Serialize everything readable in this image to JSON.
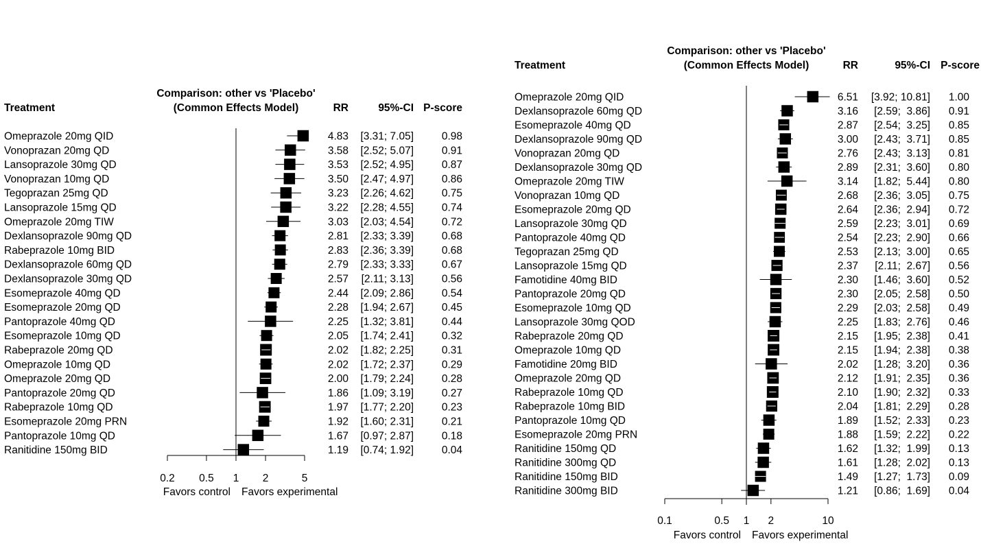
{
  "chart_data": [
    {
      "type": "forest",
      "comparison_title": [
        "Comparison: other vs 'Placebo'",
        "(Common Effects Model)"
      ],
      "headers": {
        "treatment": "Treatment",
        "rr": "RR",
        "ci": "95%-CI",
        "pscore": "P-score"
      },
      "x_scale": "log",
      "x_ticks": [
        0.2,
        0.5,
        1,
        2,
        5
      ],
      "x_tick_labels": [
        "0.2",
        "0.5",
        "1",
        "2",
        "5"
      ],
      "xlim": [
        0.2,
        5
      ],
      "favors_left": "Favors control",
      "favors_right": "Favors experimental",
      "rows": [
        {
          "treatment": "Omeprazole 20mg QID",
          "rr": 4.83,
          "lo": 3.31,
          "hi": 7.05,
          "rr_text": "4.83",
          "ci_text": "[3.31; 7.05]",
          "pscore": "0.98"
        },
        {
          "treatment": "Vonoprazan 20mg QD",
          "rr": 3.58,
          "lo": 2.52,
          "hi": 5.07,
          "rr_text": "3.58",
          "ci_text": "[2.52; 5.07]",
          "pscore": "0.91"
        },
        {
          "treatment": "Lansoprazole 30mg QD",
          "rr": 3.53,
          "lo": 2.52,
          "hi": 4.95,
          "rr_text": "3.53",
          "ci_text": "[2.52; 4.95]",
          "pscore": "0.87"
        },
        {
          "treatment": "Vonoprazan 10mg QD",
          "rr": 3.5,
          "lo": 2.47,
          "hi": 4.97,
          "rr_text": "3.50",
          "ci_text": "[2.47; 4.97]",
          "pscore": "0.86"
        },
        {
          "treatment": "Tegoprazan 25mg QD",
          "rr": 3.23,
          "lo": 2.26,
          "hi": 4.62,
          "rr_text": "3.23",
          "ci_text": "[2.26; 4.62]",
          "pscore": "0.75"
        },
        {
          "treatment": "Lansoprazole 15mg QD",
          "rr": 3.22,
          "lo": 2.28,
          "hi": 4.55,
          "rr_text": "3.22",
          "ci_text": "[2.28; 4.55]",
          "pscore": "0.74"
        },
        {
          "treatment": "Omeprazole 20mg TIW",
          "rr": 3.03,
          "lo": 2.03,
          "hi": 4.54,
          "rr_text": "3.03",
          "ci_text": "[2.03; 4.54]",
          "pscore": "0.72"
        },
        {
          "treatment": "Dexlansoprazole 90mg QD",
          "rr": 2.81,
          "lo": 2.33,
          "hi": 3.39,
          "rr_text": "2.81",
          "ci_text": "[2.33; 3.39]",
          "pscore": "0.68"
        },
        {
          "treatment": "Rabeprazole 10mg BID",
          "rr": 2.83,
          "lo": 2.36,
          "hi": 3.39,
          "rr_text": "2.83",
          "ci_text": "[2.36; 3.39]",
          "pscore": "0.68"
        },
        {
          "treatment": "Dexlansoprazole 60mg QD",
          "rr": 2.79,
          "lo": 2.33,
          "hi": 3.33,
          "rr_text": "2.79",
          "ci_text": "[2.33; 3.33]",
          "pscore": "0.67"
        },
        {
          "treatment": "Dexlansoprazole 30mg QD",
          "rr": 2.57,
          "lo": 2.11,
          "hi": 3.13,
          "rr_text": "2.57",
          "ci_text": "[2.11; 3.13]",
          "pscore": "0.56"
        },
        {
          "treatment": "Esomeprazole 40mg QD",
          "rr": 2.44,
          "lo": 2.09,
          "hi": 2.86,
          "rr_text": "2.44",
          "ci_text": "[2.09; 2.86]",
          "pscore": "0.54"
        },
        {
          "treatment": "Esomeprazole 20mg QD",
          "rr": 2.28,
          "lo": 1.94,
          "hi": 2.67,
          "rr_text": "2.28",
          "ci_text": "[1.94; 2.67]",
          "pscore": "0.45"
        },
        {
          "treatment": "Pantoprazole 40mg QD",
          "rr": 2.25,
          "lo": 1.32,
          "hi": 3.81,
          "rr_text": "2.25",
          "ci_text": "[1.32; 3.81]",
          "pscore": "0.44"
        },
        {
          "treatment": "Esomeprazole 10mg QD",
          "rr": 2.05,
          "lo": 1.74,
          "hi": 2.41,
          "rr_text": "2.05",
          "ci_text": "[1.74; 2.41]",
          "pscore": "0.32"
        },
        {
          "treatment": "Rabeprazole 20mg QD",
          "rr": 2.02,
          "lo": 1.82,
          "hi": 2.25,
          "rr_text": "2.02",
          "ci_text": "[1.82; 2.25]",
          "pscore": "0.31"
        },
        {
          "treatment": "Omeprazole 10mg QD",
          "rr": 2.02,
          "lo": 1.72,
          "hi": 2.37,
          "rr_text": "2.02",
          "ci_text": "[1.72; 2.37]",
          "pscore": "0.29"
        },
        {
          "treatment": "Omeprazole 20mg QD",
          "rr": 2.0,
          "lo": 1.79,
          "hi": 2.24,
          "rr_text": "2.00",
          "ci_text": "[1.79; 2.24]",
          "pscore": "0.28"
        },
        {
          "treatment": "Pantoprazole 20mg QD",
          "rr": 1.86,
          "lo": 1.09,
          "hi": 3.19,
          "rr_text": "1.86",
          "ci_text": "[1.09; 3.19]",
          "pscore": "0.27"
        },
        {
          "treatment": "Rabeprazole 10mg QD",
          "rr": 1.97,
          "lo": 1.77,
          "hi": 2.2,
          "rr_text": "1.97",
          "ci_text": "[1.77; 2.20]",
          "pscore": "0.23"
        },
        {
          "treatment": "Esomeprazole 20mg PRN",
          "rr": 1.92,
          "lo": 1.6,
          "hi": 2.31,
          "rr_text": "1.92",
          "ci_text": "[1.60; 2.31]",
          "pscore": "0.21"
        },
        {
          "treatment": "Pantoprazole 10mg QD",
          "rr": 1.67,
          "lo": 0.97,
          "hi": 2.87,
          "rr_text": "1.67",
          "ci_text": "[0.97; 2.87]",
          "pscore": "0.18"
        },
        {
          "treatment": "Ranitidine 150mg BID",
          "rr": 1.19,
          "lo": 0.74,
          "hi": 1.92,
          "rr_text": "1.19",
          "ci_text": "[0.74; 1.92]",
          "pscore": "0.04"
        }
      ]
    },
    {
      "type": "forest",
      "comparison_title": [
        "Comparison: other vs 'Placebo'",
        "(Common Effects Model)"
      ],
      "headers": {
        "treatment": "Treatment",
        "rr": "RR",
        "ci": "95%-CI",
        "pscore": "P-score"
      },
      "x_scale": "log",
      "x_ticks": [
        0.1,
        0.5,
        1,
        2,
        10
      ],
      "x_tick_labels": [
        "0.1",
        "0.5",
        "1",
        "2",
        "10"
      ],
      "xlim": [
        0.1,
        10
      ],
      "favors_left": "Favors control",
      "favors_right": "Favors experimental",
      "rows": [
        {
          "treatment": "Omeprazole 20mg QID",
          "rr": 6.51,
          "lo": 3.92,
          "hi": 10.81,
          "rr_text": "6.51",
          "ci_text": "[3.92; 10.81]",
          "pscore": "1.00"
        },
        {
          "treatment": "Dexlansoprazole 60mg QD",
          "rr": 3.16,
          "lo": 2.59,
          "hi": 3.86,
          "rr_text": "3.16",
          "ci_text": "[2.59;  3.86]",
          "pscore": "0.91"
        },
        {
          "treatment": "Esomeprazole 40mg QD",
          "rr": 2.87,
          "lo": 2.54,
          "hi": 3.25,
          "rr_text": "2.87",
          "ci_text": "[2.54;  3.25]",
          "pscore": "0.85"
        },
        {
          "treatment": "Dexlansoprazole 90mg QD",
          "rr": 3.0,
          "lo": 2.43,
          "hi": 3.71,
          "rr_text": "3.00",
          "ci_text": "[2.43;  3.71]",
          "pscore": "0.85"
        },
        {
          "treatment": "Vonoprazan 20mg QD",
          "rr": 2.76,
          "lo": 2.43,
          "hi": 3.13,
          "rr_text": "2.76",
          "ci_text": "[2.43;  3.13]",
          "pscore": "0.81"
        },
        {
          "treatment": "Dexlansoprazole 30mg QD",
          "rr": 2.89,
          "lo": 2.31,
          "hi": 3.6,
          "rr_text": "2.89",
          "ci_text": "[2.31;  3.60]",
          "pscore": "0.80"
        },
        {
          "treatment": "Omeprazole 20mg TIW",
          "rr": 3.14,
          "lo": 1.82,
          "hi": 5.44,
          "rr_text": "3.14",
          "ci_text": "[1.82;  5.44]",
          "pscore": "0.80"
        },
        {
          "treatment": "Vonoprazan 10mg QD",
          "rr": 2.68,
          "lo": 2.36,
          "hi": 3.05,
          "rr_text": "2.68",
          "ci_text": "[2.36;  3.05]",
          "pscore": "0.75"
        },
        {
          "treatment": "Esomeprazole 20mg QD",
          "rr": 2.64,
          "lo": 2.36,
          "hi": 2.94,
          "rr_text": "2.64",
          "ci_text": "[2.36;  2.94]",
          "pscore": "0.72"
        },
        {
          "treatment": "Lansoprazole 30mg QD",
          "rr": 2.59,
          "lo": 2.23,
          "hi": 3.01,
          "rr_text": "2.59",
          "ci_text": "[2.23;  3.01]",
          "pscore": "0.69"
        },
        {
          "treatment": "Pantoprazole 40mg QD",
          "rr": 2.54,
          "lo": 2.23,
          "hi": 2.9,
          "rr_text": "2.54",
          "ci_text": "[2.23;  2.90]",
          "pscore": "0.66"
        },
        {
          "treatment": "Tegoprazan 25mg QD",
          "rr": 2.53,
          "lo": 2.13,
          "hi": 3.0,
          "rr_text": "2.53",
          "ci_text": "[2.13;  3.00]",
          "pscore": "0.65"
        },
        {
          "treatment": "Lansoprazole 15mg QD",
          "rr": 2.37,
          "lo": 2.11,
          "hi": 2.67,
          "rr_text": "2.37",
          "ci_text": "[2.11;  2.67]",
          "pscore": "0.56"
        },
        {
          "treatment": "Famotidine 40mg BID",
          "rr": 2.3,
          "lo": 1.46,
          "hi": 3.6,
          "rr_text": "2.30",
          "ci_text": "[1.46;  3.60]",
          "pscore": "0.52"
        },
        {
          "treatment": "Pantoprazole 20mg QD",
          "rr": 2.3,
          "lo": 2.05,
          "hi": 2.58,
          "rr_text": "2.30",
          "ci_text": "[2.05;  2.58]",
          "pscore": "0.50"
        },
        {
          "treatment": "Esomeprazole 10mg QD",
          "rr": 2.29,
          "lo": 2.03,
          "hi": 2.58,
          "rr_text": "2.29",
          "ci_text": "[2.03;  2.58]",
          "pscore": "0.49"
        },
        {
          "treatment": "Lansoprazole 30mg QOD",
          "rr": 2.25,
          "lo": 1.83,
          "hi": 2.76,
          "rr_text": "2.25",
          "ci_text": "[1.83;  2.76]",
          "pscore": "0.46"
        },
        {
          "treatment": "Rabeprazole 20mg QD",
          "rr": 2.15,
          "lo": 1.95,
          "hi": 2.38,
          "rr_text": "2.15",
          "ci_text": "[1.95;  2.38]",
          "pscore": "0.41"
        },
        {
          "treatment": "Omeprazole 10mg QD",
          "rr": 2.15,
          "lo": 1.94,
          "hi": 2.38,
          "rr_text": "2.15",
          "ci_text": "[1.94;  2.38]",
          "pscore": "0.38"
        },
        {
          "treatment": "Famotidine 20mg BID",
          "rr": 2.02,
          "lo": 1.28,
          "hi": 3.2,
          "rr_text": "2.02",
          "ci_text": "[1.28;  3.20]",
          "pscore": "0.36"
        },
        {
          "treatment": "Omeprazole 20mg QD",
          "rr": 2.12,
          "lo": 1.91,
          "hi": 2.35,
          "rr_text": "2.12",
          "ci_text": "[1.91;  2.35]",
          "pscore": "0.36"
        },
        {
          "treatment": "Rabeprazole 10mg QD",
          "rr": 2.1,
          "lo": 1.9,
          "hi": 2.32,
          "rr_text": "2.10",
          "ci_text": "[1.90;  2.32]",
          "pscore": "0.33"
        },
        {
          "treatment": "Rabeprazole 10mg BID",
          "rr": 2.04,
          "lo": 1.81,
          "hi": 2.29,
          "rr_text": "2.04",
          "ci_text": "[1.81;  2.29]",
          "pscore": "0.28"
        },
        {
          "treatment": "Pantoprazole 10mg QD",
          "rr": 1.89,
          "lo": 1.52,
          "hi": 2.33,
          "rr_text": "1.89",
          "ci_text": "[1.52;  2.33]",
          "pscore": "0.23"
        },
        {
          "treatment": "Esomeprazole 20mg PRN",
          "rr": 1.88,
          "lo": 1.59,
          "hi": 2.22,
          "rr_text": "1.88",
          "ci_text": "[1.59;  2.22]",
          "pscore": "0.22"
        },
        {
          "treatment": "Ranitidine 150mg QD",
          "rr": 1.62,
          "lo": 1.32,
          "hi": 1.99,
          "rr_text": "1.62",
          "ci_text": "[1.32;  1.99]",
          "pscore": "0.13"
        },
        {
          "treatment": "Ranitidine 300mg QD",
          "rr": 1.61,
          "lo": 1.28,
          "hi": 2.02,
          "rr_text": "1.61",
          "ci_text": "[1.28;  2.02]",
          "pscore": "0.13"
        },
        {
          "treatment": "Ranitidine 150mg BID",
          "rr": 1.49,
          "lo": 1.27,
          "hi": 1.73,
          "rr_text": "1.49",
          "ci_text": "[1.27;  1.73]",
          "pscore": "0.09"
        },
        {
          "treatment": "Ranitidine 300mg BID",
          "rr": 1.21,
          "lo": 0.86,
          "hi": 1.69,
          "rr_text": "1.21",
          "ci_text": "[0.86;  1.69]",
          "pscore": "0.04"
        }
      ]
    }
  ]
}
